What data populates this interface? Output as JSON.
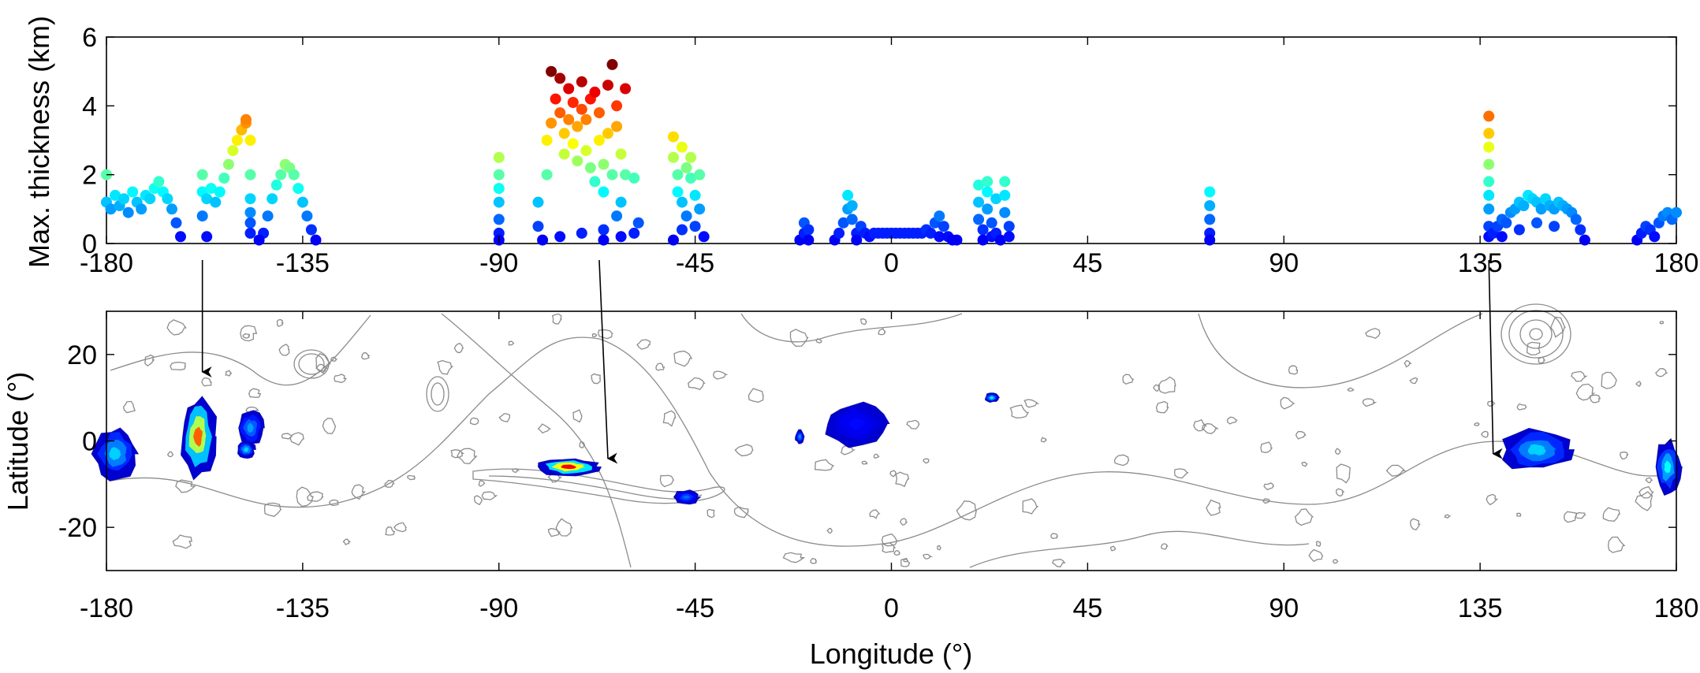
{
  "chart_data": [
    {
      "type": "scatter",
      "panel": "top",
      "xlabel": "",
      "ylabel": "Max. thickness (km)",
      "xlim": [
        -180,
        180
      ],
      "ylim": [
        0,
        6
      ],
      "xticks": [
        "-180",
        "-135",
        "-90",
        "-45",
        "0",
        "45",
        "90",
        "135",
        "180"
      ],
      "yticks": [
        "0",
        "2",
        "4",
        "6"
      ],
      "colormap": "jet",
      "color_range": [
        0,
        5
      ],
      "points": [
        [
          -180,
          1.2
        ],
        [
          -180,
          2.0
        ],
        [
          -179,
          1.0
        ],
        [
          -178,
          1.4
        ],
        [
          -177,
          1.1
        ],
        [
          -176,
          1.3
        ],
        [
          -175,
          0.9
        ],
        [
          -174,
          1.5
        ],
        [
          -173,
          1.2
        ],
        [
          -172,
          1.0
        ],
        [
          -171,
          1.4
        ],
        [
          -170,
          1.3
        ],
        [
          -169,
          1.6
        ],
        [
          -168,
          1.8
        ],
        [
          -167,
          1.5
        ],
        [
          -166,
          1.3
        ],
        [
          -165,
          1.0
        ],
        [
          -164,
          0.6
        ],
        [
          -163,
          0.2
        ],
        [
          -158,
          1.5
        ],
        [
          -158,
          2.0
        ],
        [
          -157,
          1.3
        ],
        [
          -156,
          1.6
        ],
        [
          -155,
          1.2
        ],
        [
          -154,
          1.5
        ],
        [
          -153,
          1.9
        ],
        [
          -152,
          2.3
        ],
        [
          -151,
          2.7
        ],
        [
          -150,
          3.0
        ],
        [
          -149,
          3.3
        ],
        [
          -148,
          3.5
        ],
        [
          -158,
          0.8
        ],
        [
          -157,
          0.2
        ],
        [
          -148,
          3.6
        ],
        [
          -147,
          3.0
        ],
        [
          -147,
          2.0
        ],
        [
          -147,
          1.3
        ],
        [
          -147,
          0.9
        ],
        [
          -147,
          0.6
        ],
        [
          -147,
          0.3
        ],
        [
          -144,
          0.3
        ],
        [
          -143,
          0.8
        ],
        [
          -142,
          1.3
        ],
        [
          -141,
          1.7
        ],
        [
          -140,
          2.0
        ],
        [
          -139,
          2.3
        ],
        [
          -138,
          2.2
        ],
        [
          -137,
          2.0
        ],
        [
          -136,
          1.6
        ],
        [
          -135,
          1.2
        ],
        [
          -134,
          0.8
        ],
        [
          -133,
          0.4
        ],
        [
          -132,
          0.1
        ],
        [
          -145,
          0.1
        ],
        [
          -90,
          2.5
        ],
        [
          -90,
          2.0
        ],
        [
          -90,
          1.6
        ],
        [
          -90,
          1.2
        ],
        [
          -90,
          0.7
        ],
        [
          -90,
          0.3
        ],
        [
          -90,
          0.1
        ],
        [
          -81,
          1.2
        ],
        [
          -81,
          0.5
        ],
        [
          -80,
          0.1
        ],
        [
          -79,
          2.0
        ],
        [
          -79,
          3.0
        ],
        [
          -78,
          3.5
        ],
        [
          -78,
          5.0
        ],
        [
          -77,
          4.2
        ],
        [
          -76,
          4.8
        ],
        [
          -76,
          3.8
        ],
        [
          -75,
          3.2
        ],
        [
          -75,
          2.6
        ],
        [
          -74,
          4.5
        ],
        [
          -74,
          3.6
        ],
        [
          -73,
          2.9
        ],
        [
          -73,
          4.1
        ],
        [
          -72,
          3.4
        ],
        [
          -72,
          2.4
        ],
        [
          -71,
          4.7
        ],
        [
          -71,
          3.9
        ],
        [
          -70,
          2.7
        ],
        [
          -70,
          3.6
        ],
        [
          -69,
          4.2
        ],
        [
          -69,
          2.2
        ],
        [
          -68,
          1.8
        ],
        [
          -68,
          4.4
        ],
        [
          -67,
          3.8
        ],
        [
          -67,
          3.0
        ],
        [
          -66,
          2.3
        ],
        [
          -66,
          1.5
        ],
        [
          -65,
          4.6
        ],
        [
          -65,
          3.2
        ],
        [
          -64,
          2.0
        ],
        [
          -64,
          5.2
        ],
        [
          -63,
          4.0
        ],
        [
          -63,
          3.4
        ],
        [
          -62,
          2.6
        ],
        [
          -62,
          1.2
        ],
        [
          -61,
          4.5
        ],
        [
          -61,
          2.0
        ],
        [
          -66,
          0.4
        ],
        [
          -66,
          0.1
        ],
        [
          -63,
          0.8
        ],
        [
          -62,
          0.2
        ],
        [
          -59,
          1.9
        ],
        [
          -59,
          0.3
        ],
        [
          -58,
          0.6
        ],
        [
          -76,
          0.2
        ],
        [
          -71,
          0.3
        ],
        [
          -50,
          3.1
        ],
        [
          -50,
          2.5
        ],
        [
          -49,
          2.0
        ],
        [
          -49,
          1.5
        ],
        [
          -48,
          2.8
        ],
        [
          -48,
          1.2
        ],
        [
          -47,
          2.2
        ],
        [
          -47,
          0.8
        ],
        [
          -46,
          1.9
        ],
        [
          -46,
          2.5
        ],
        [
          -45,
          1.4
        ],
        [
          -45,
          0.5
        ],
        [
          -44,
          2.0
        ],
        [
          -44,
          1.0
        ],
        [
          -43,
          0.2
        ],
        [
          -48,
          0.4
        ],
        [
          -50,
          0.1
        ],
        [
          -21,
          0.1
        ],
        [
          -20,
          0.3
        ],
        [
          -20,
          0.6
        ],
        [
          -19,
          0.4
        ],
        [
          -19,
          0.1
        ],
        [
          -13,
          0.1
        ],
        [
          -12,
          0.3
        ],
        [
          -11,
          0.6
        ],
        [
          -10,
          1.0
        ],
        [
          -10,
          1.4
        ],
        [
          -9,
          1.1
        ],
        [
          -9,
          0.7
        ],
        [
          -8,
          0.3
        ],
        [
          -8,
          0.1
        ],
        [
          -7,
          0.5
        ],
        [
          -6,
          0.3
        ],
        [
          -5,
          0.2
        ],
        [
          -4,
          0.3
        ],
        [
          -3,
          0.3
        ],
        [
          -2,
          0.3
        ],
        [
          -1,
          0.3
        ],
        [
          0,
          0.3
        ],
        [
          1,
          0.3
        ],
        [
          2,
          0.3
        ],
        [
          3,
          0.3
        ],
        [
          4,
          0.3
        ],
        [
          5,
          0.3
        ],
        [
          6,
          0.3
        ],
        [
          7,
          0.3
        ],
        [
          8,
          0.4
        ],
        [
          9,
          0.3
        ],
        [
          10,
          0.6
        ],
        [
          11,
          0.8
        ],
        [
          11,
          0.2
        ],
        [
          12,
          0.5
        ],
        [
          13,
          0.2
        ],
        [
          14,
          0.1
        ],
        [
          15,
          0.1
        ],
        [
          20,
          1.7
        ],
        [
          20,
          1.2
        ],
        [
          20,
          0.7
        ],
        [
          21,
          0.4
        ],
        [
          21,
          0.1
        ],
        [
          22,
          1.8
        ],
        [
          22,
          1.5
        ],
        [
          22,
          1.0
        ],
        [
          23,
          0.6
        ],
        [
          23,
          0.2
        ],
        [
          24,
          1.3
        ],
        [
          24,
          0.3
        ],
        [
          25,
          0.1
        ],
        [
          26,
          1.8
        ],
        [
          26,
          1.4
        ],
        [
          26,
          0.9
        ],
        [
          27,
          0.5
        ],
        [
          27,
          0.2
        ],
        [
          73,
          1.5
        ],
        [
          73,
          1.1
        ],
        [
          73,
          0.7
        ],
        [
          73,
          0.3
        ],
        [
          73,
          0.1
        ],
        [
          137,
          3.7
        ],
        [
          137,
          3.2
        ],
        [
          137,
          2.8
        ],
        [
          137,
          2.3
        ],
        [
          137,
          1.8
        ],
        [
          137,
          1.4
        ],
        [
          137,
          1.0
        ],
        [
          137,
          0.5
        ],
        [
          137,
          0.2
        ],
        [
          138,
          0.3
        ],
        [
          139,
          0.5
        ],
        [
          140,
          0.7
        ],
        [
          141,
          0.6
        ],
        [
          142,
          0.9
        ],
        [
          143,
          1.0
        ],
        [
          144,
          1.2
        ],
        [
          145,
          1.1
        ],
        [
          146,
          1.4
        ],
        [
          147,
          1.3
        ],
        [
          148,
          1.2
        ],
        [
          149,
          1.0
        ],
        [
          150,
          1.3
        ],
        [
          151,
          1.1
        ],
        [
          152,
          1.0
        ],
        [
          153,
          1.2
        ],
        [
          154,
          1.1
        ],
        [
          155,
          1.0
        ],
        [
          156,
          0.9
        ],
        [
          157,
          0.7
        ],
        [
          158,
          0.4
        ],
        [
          159,
          0.1
        ],
        [
          140,
          0.2
        ],
        [
          144,
          0.4
        ],
        [
          148,
          0.6
        ],
        [
          152,
          0.5
        ],
        [
          171,
          0.1
        ],
        [
          172,
          0.3
        ],
        [
          173,
          0.5
        ],
        [
          174,
          0.4
        ],
        [
          175,
          0.2
        ],
        [
          176,
          0.6
        ],
        [
          177,
          0.8
        ],
        [
          178,
          0.9
        ],
        [
          179,
          0.7
        ],
        [
          180,
          0.9
        ]
      ]
    },
    {
      "type": "heatmap",
      "panel": "bottom",
      "xlabel": "Longitude (°)",
      "ylabel": "Latitude (°)",
      "xlim": [
        -180,
        180
      ],
      "ylim": [
        -30,
        30
      ],
      "xticks": [
        "-180",
        "-135",
        "-90",
        "-45",
        "0",
        "45",
        "90",
        "135",
        "180"
      ],
      "yticks": [
        "20",
        "0",
        "-20"
      ],
      "colormap": "jet",
      "deposits": [
        {
          "lon": -178,
          "lat": -3,
          "rx": 5,
          "ry": 6,
          "peak": 0.25
        },
        {
          "lon": -159,
          "lat": 1,
          "rx": 4,
          "ry": 9,
          "peak": 0.7
        },
        {
          "lon": -147,
          "lat": 3,
          "rx": 3,
          "ry": 4,
          "peak": 0.2
        },
        {
          "lon": -148,
          "lat": -2,
          "rx": 2,
          "ry": 2,
          "peak": 0.25
        },
        {
          "lon": -74,
          "lat": -6,
          "rx": 7,
          "ry": 2,
          "peak": 0.8
        },
        {
          "lon": -47,
          "lat": -13,
          "rx": 3,
          "ry": 1.5,
          "peak": 0.15
        },
        {
          "lon": -8,
          "lat": 4,
          "rx": 7,
          "ry": 5,
          "peak": 0.05
        },
        {
          "lon": -21,
          "lat": 1,
          "rx": 1,
          "ry": 1.5,
          "peak": 0.2
        },
        {
          "lon": 23,
          "lat": 10,
          "rx": 1.5,
          "ry": 1,
          "peak": 0.3
        },
        {
          "lon": 148,
          "lat": -2,
          "rx": 8,
          "ry": 5,
          "peak": 0.25
        },
        {
          "lon": 178,
          "lat": -6,
          "rx": 3,
          "ry": 6,
          "peak": 0.3
        }
      ],
      "arrows": [
        {
          "from_lon": -158,
          "to_lon": -158
        },
        {
          "from_lon": -67,
          "to_lon": -65
        },
        {
          "from_lon": 137,
          "to_lon": 138
        }
      ]
    }
  ]
}
